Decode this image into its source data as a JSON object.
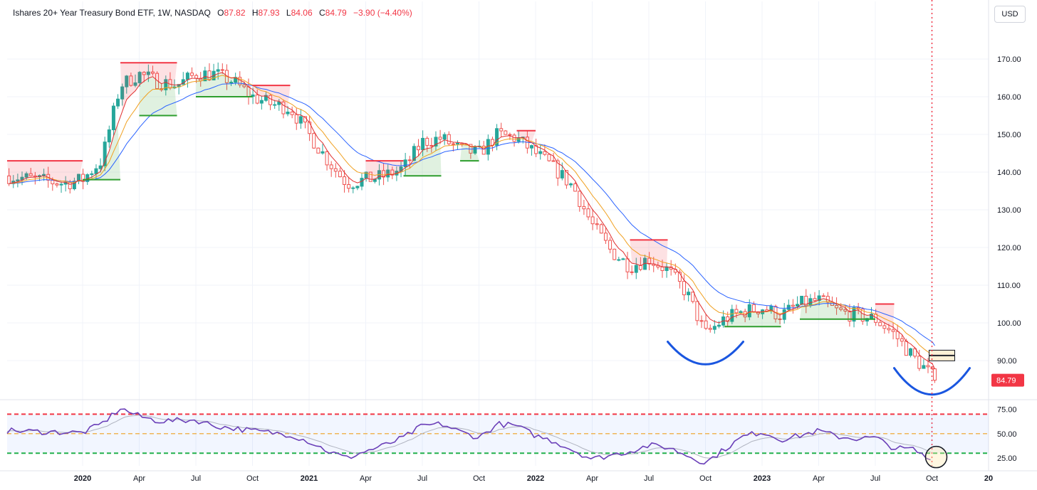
{
  "header": {
    "title": "Ishares 20+ Year Treasury Bond ETF, 1W, NASDAQ",
    "open_label": "O",
    "open_value": "87.82",
    "high_label": "H",
    "high_value": "87.93",
    "low_label": "L",
    "low_value": "84.06",
    "close_label": "C",
    "close_value": "84.79",
    "change": "−3.90 (−4.40%)"
  },
  "currency_button": "USD",
  "colors": {
    "up": "#26a69a",
    "down": "#ef5350",
    "price_tag": "#f23645",
    "ema_fast": "#e03030",
    "ema_mid": "#f0a020",
    "ema_slow": "#2962ff",
    "resistance": "#f23645",
    "support": "#2e9e2e",
    "cup": "#1a56e0",
    "rsi": "#6a3fb8"
  },
  "chart_data": [
    {
      "type": "candlestick",
      "series_name": "Ishares 20+ Year Treasury Bond ETF",
      "interval": "1W",
      "ylim": [
        80,
        180
      ],
      "y_ticks": [
        90,
        100,
        110,
        120,
        130,
        140,
        150,
        160,
        170
      ],
      "y_tick_labels": [
        "90.00",
        "100.00",
        "110.00",
        "120.00",
        "130.00",
        "140.00",
        "150.00",
        "160.00",
        "170.00"
      ],
      "x_ticks": [
        {
          "label": "2020",
          "date": "2020-01",
          "year": true
        },
        {
          "label": "Apr",
          "date": "2020-04"
        },
        {
          "label": "Jul",
          "date": "2020-07"
        },
        {
          "label": "Oct",
          "date": "2020-10"
        },
        {
          "label": "2021",
          "date": "2021-01",
          "year": true
        },
        {
          "label": "Apr",
          "date": "2021-04"
        },
        {
          "label": "Jul",
          "date": "2021-07"
        },
        {
          "label": "Oct",
          "date": "2021-10"
        },
        {
          "label": "2022",
          "date": "2022-01",
          "year": true
        },
        {
          "label": "Apr",
          "date": "2022-04"
        },
        {
          "label": "Jul",
          "date": "2022-07"
        },
        {
          "label": "Oct",
          "date": "2022-10"
        },
        {
          "label": "2023",
          "date": "2023-01",
          "year": true
        },
        {
          "label": "Apr",
          "date": "2023-04"
        },
        {
          "label": "Jul",
          "date": "2023-07"
        },
        {
          "label": "Oct",
          "date": "2023-10"
        },
        {
          "label": "20",
          "date": "2024-01",
          "year": true
        }
      ],
      "price_path": [
        [
          "2019-09",
          139
        ],
        [
          "2019-12",
          137
        ],
        [
          "2020-01",
          138
        ],
        [
          "2020-02",
          143
        ],
        [
          "2020-03",
          163
        ],
        [
          "2020-04",
          166
        ],
        [
          "2020-05",
          164
        ],
        [
          "2020-06",
          163
        ],
        [
          "2020-07",
          166
        ],
        [
          "2020-08",
          166
        ],
        [
          "2020-09",
          164
        ],
        [
          "2020-10",
          160
        ],
        [
          "2020-11",
          158
        ],
        [
          "2020-12",
          157
        ],
        [
          "2021-01",
          150
        ],
        [
          "2021-02",
          143
        ],
        [
          "2021-03",
          137
        ],
        [
          "2021-04",
          138
        ],
        [
          "2021-05",
          139
        ],
        [
          "2021-06",
          141
        ],
        [
          "2021-07",
          148
        ],
        [
          "2021-08",
          149
        ],
        [
          "2021-09",
          146
        ],
        [
          "2021-10",
          145
        ],
        [
          "2021-11",
          150
        ],
        [
          "2021-12",
          149
        ],
        [
          "2022-01",
          145
        ],
        [
          "2022-02",
          141
        ],
        [
          "2022-03",
          136
        ],
        [
          "2022-04",
          126
        ],
        [
          "2022-05",
          119
        ],
        [
          "2022-06",
          115
        ],
        [
          "2022-07",
          117
        ],
        [
          "2022-08",
          114
        ],
        [
          "2022-09",
          108
        ],
        [
          "2022-10",
          97
        ],
        [
          "2022-11",
          101
        ],
        [
          "2022-12",
          103
        ],
        [
          "2023-01",
          104
        ],
        [
          "2023-02",
          102
        ],
        [
          "2023-03",
          105
        ],
        [
          "2023-04",
          106
        ],
        [
          "2023-05",
          103
        ],
        [
          "2023-06",
          102
        ],
        [
          "2023-07",
          101
        ],
        [
          "2023-08",
          97
        ],
        [
          "2023-09",
          91
        ],
        [
          "2023-10",
          86
        ]
      ],
      "last_price": 84.79,
      "last_price_label": "84.79",
      "last_candle": {
        "open": 87.82,
        "high": 87.93,
        "low": 84.06,
        "close": 84.79
      },
      "upper_box_band": [
        {
          "start": "2019-09",
          "end": "2020-01",
          "value": 143
        },
        {
          "start": "2020-03",
          "end": "2020-06",
          "value": 169
        },
        {
          "start": "2020-10",
          "end": "2020-12",
          "value": 163
        },
        {
          "start": "2021-04",
          "end": "2021-06",
          "value": 143
        },
        {
          "start": "2021-12",
          "end": "2022-01",
          "value": 151
        },
        {
          "start": "2022-06",
          "end": "2022-08",
          "value": 122
        },
        {
          "start": "2023-07",
          "end": "2023-08",
          "value": 105
        }
      ],
      "lower_box_band": [
        {
          "start": "2020-01",
          "end": "2020-03",
          "value": 138
        },
        {
          "start": "2020-04",
          "end": "2020-06",
          "value": 155
        },
        {
          "start": "2020-07",
          "end": "2020-10",
          "value": 160
        },
        {
          "start": "2021-06",
          "end": "2021-08",
          "value": 139
        },
        {
          "start": "2021-09",
          "end": "2021-10",
          "value": 143
        },
        {
          "start": "2022-11",
          "end": "2023-02",
          "value": 99
        },
        {
          "start": "2023-03",
          "end": "2023-07",
          "value": 101
        }
      ],
      "cup_annotations": [
        {
          "start": "2022-08",
          "center": "2022-10",
          "end": "2022-12",
          "top": 95,
          "bottom": 89
        },
        {
          "start": "2023-08",
          "center": "2023-10",
          "end": "2023-12",
          "top": 88,
          "bottom": 81
        }
      ],
      "highlight_boxes": [
        92,
        90.5
      ],
      "current_date_marker": "2023-10"
    },
    {
      "type": "line",
      "series_name": "RSI",
      "ylim": [
        17,
        82
      ],
      "y_ticks": [
        25,
        50,
        75
      ],
      "y_tick_labels": [
        "25.00",
        "50.00",
        "75.00"
      ],
      "overbought": 70,
      "oversold": 30,
      "midline": 50,
      "values": [
        [
          "2019-09",
          53
        ],
        [
          "2020-01",
          51
        ],
        [
          "2020-02",
          60
        ],
        [
          "2020-03",
          76
        ],
        [
          "2020-04",
          68
        ],
        [
          "2020-05",
          63
        ],
        [
          "2020-07",
          64
        ],
        [
          "2020-08",
          58
        ],
        [
          "2020-10",
          53
        ],
        [
          "2020-12",
          49
        ],
        [
          "2021-01",
          42
        ],
        [
          "2021-02",
          32
        ],
        [
          "2021-03",
          25
        ],
        [
          "2021-04",
          32
        ],
        [
          "2021-05",
          38
        ],
        [
          "2021-06",
          46
        ],
        [
          "2021-07",
          58
        ],
        [
          "2021-08",
          60
        ],
        [
          "2021-09",
          52
        ],
        [
          "2021-10",
          46
        ],
        [
          "2021-11",
          60
        ],
        [
          "2021-12",
          58
        ],
        [
          "2022-01",
          48
        ],
        [
          "2022-02",
          42
        ],
        [
          "2022-03",
          33
        ],
        [
          "2022-04",
          24
        ],
        [
          "2022-05",
          28
        ],
        [
          "2022-06",
          32
        ],
        [
          "2022-07",
          38
        ],
        [
          "2022-08",
          36
        ],
        [
          "2022-09",
          28
        ],
        [
          "2022-10",
          20
        ],
        [
          "2022-11",
          34
        ],
        [
          "2022-12",
          47
        ],
        [
          "2023-01",
          52
        ],
        [
          "2023-02",
          44
        ],
        [
          "2023-03",
          48
        ],
        [
          "2023-04",
          53
        ],
        [
          "2023-05",
          47
        ],
        [
          "2023-06",
          45
        ],
        [
          "2023-07",
          46
        ],
        [
          "2023-08",
          35
        ],
        [
          "2023-09",
          34
        ],
        [
          "2023-10",
          22
        ]
      ]
    }
  ]
}
